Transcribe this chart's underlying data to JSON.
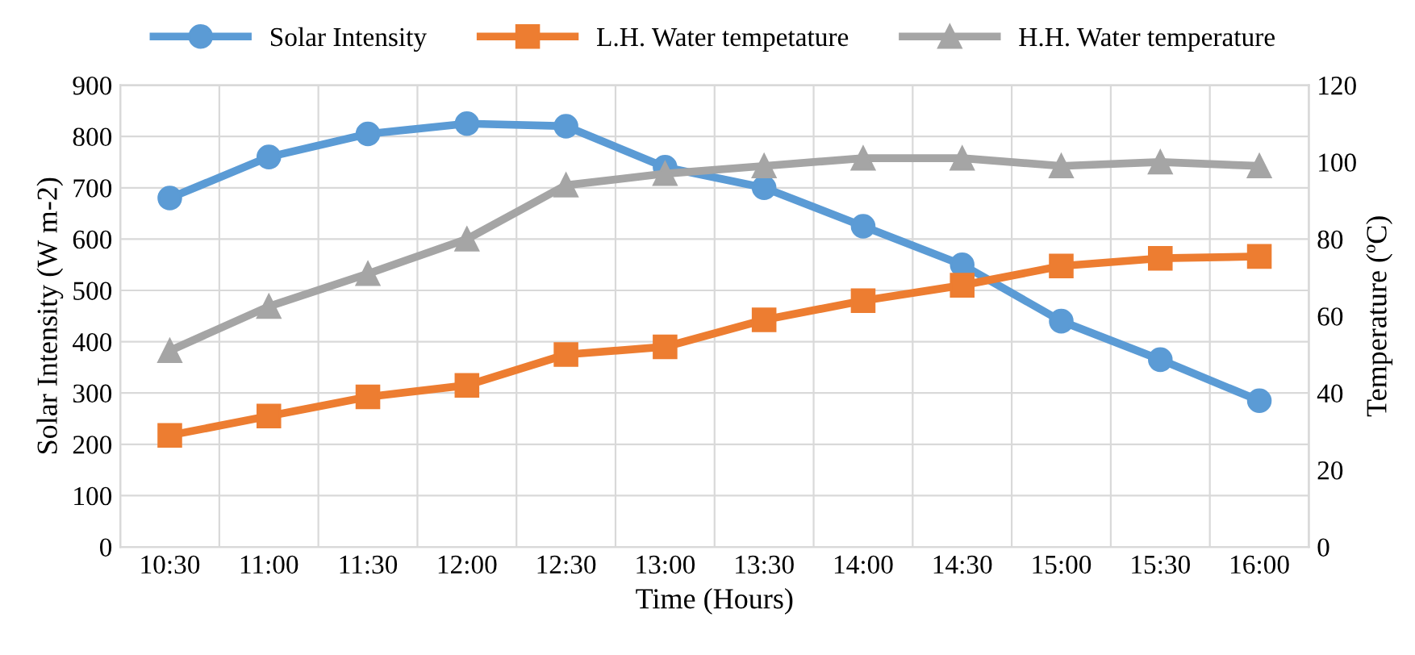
{
  "chart_data": {
    "type": "line",
    "xlabel": "Time (Hours)",
    "ylabel": "Solar Intensity (W m-2)",
    "y2label": "Temperature (ºC)",
    "categories": [
      "10:30",
      "11:00",
      "11:30",
      "12:00",
      "12:30",
      "13:00",
      "13:30",
      "14:00",
      "14:30",
      "15:00",
      "15:30",
      "16:00"
    ],
    "series": [
      {
        "name": "Solar Intensity",
        "color": "#5b9bd5",
        "marker": "circle",
        "values": [
          680,
          760,
          805,
          825,
          820,
          740,
          700,
          625,
          550,
          440,
          365,
          285
        ]
      },
      {
        "name": "L.H. Water tempetature",
        "color": "#ed7d31",
        "marker": "square",
        "axis": "y2",
        "values": [
          29,
          34,
          39,
          42,
          50,
          52,
          59,
          64,
          68,
          73,
          75,
          75.5
        ]
      },
      {
        "name": "H.H. Water temperature",
        "color": "#a5a5a5",
        "marker": "triangle",
        "axis": "y2",
        "values": [
          51,
          62.5,
          71,
          80,
          94,
          97,
          99,
          101,
          101,
          99,
          100,
          99
        ]
      }
    ],
    "ylim": [
      0,
      900
    ],
    "yticks": [
      0,
      100,
      200,
      300,
      400,
      500,
      600,
      700,
      800,
      900
    ],
    "y2lim": [
      0,
      120
    ],
    "y2ticks": [
      0,
      20,
      40,
      60,
      80,
      100,
      120
    ],
    "grid": true,
    "legend": "top",
    "line_style": "solid"
  }
}
